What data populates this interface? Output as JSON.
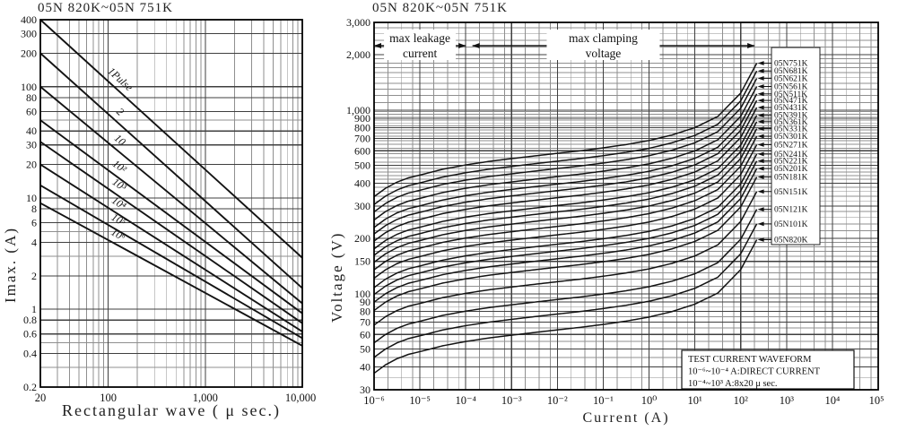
{
  "colors": {
    "background": "#ffffff",
    "curve": "#131313",
    "grid_minor": "#8f8f8f",
    "grid_major": "#3f3f3f",
    "border": "#000000"
  },
  "chart_data": [
    {
      "type": "line",
      "id": "pulse-derating",
      "title": "05N 820K~05N 751K",
      "xlabel": "Rectangular wave ( μ sec.)",
      "ylabel": "Imax. (A)",
      "xscale": "log",
      "yscale": "log",
      "xlim": [
        20,
        10000
      ],
      "ylim": [
        0.2,
        400
      ],
      "xticks": [
        {
          "v": 20,
          "label": "20"
        },
        {
          "v": 100,
          "label": "100"
        },
        {
          "v": 1000,
          "label": "1,000"
        },
        {
          "v": 10000,
          "label": "10,000"
        }
      ],
      "yticks": [
        {
          "v": 400,
          "label": "400"
        },
        {
          "v": 300,
          "label": "300"
        },
        {
          "v": 200,
          "label": "200"
        },
        {
          "v": 100,
          "label": "100"
        },
        {
          "v": 80,
          "label": "80"
        },
        {
          "v": 60,
          "label": "60"
        },
        {
          "v": 40,
          "label": "40"
        },
        {
          "v": 30,
          "label": "30"
        },
        {
          "v": 20,
          "label": "20"
        },
        {
          "v": 10,
          "label": "10"
        },
        {
          "v": 8,
          "label": "8"
        },
        {
          "v": 6,
          "label": "6"
        },
        {
          "v": 4,
          "label": "4"
        },
        {
          "v": 2,
          "label": "2"
        },
        {
          "v": 1,
          "label": "1"
        },
        {
          "v": 0.8,
          "label": "0.8"
        },
        {
          "v": 0.6,
          "label": "0.6"
        },
        {
          "v": 0.4,
          "label": "0.4"
        },
        {
          "v": 0.2,
          "label": "0.2"
        }
      ],
      "xgrid_major": [
        100,
        1000
      ],
      "xgrid_minor": [
        30,
        40,
        50,
        60,
        70,
        80,
        90,
        200,
        300,
        400,
        500,
        600,
        700,
        800,
        900,
        2000,
        3000,
        4000,
        5000,
        6000,
        7000,
        8000,
        9000
      ],
      "ygrid_major": [
        0.4,
        0.6,
        0.8,
        1,
        2,
        4,
        6,
        8,
        10,
        20,
        30,
        40,
        60,
        80,
        100,
        200,
        300
      ],
      "ygrid_minor": [
        0.3,
        0.5,
        3,
        5,
        50
      ],
      "series": [
        {
          "name": "1Pulse",
          "points": [
            [
              20,
              400
            ],
            [
              10000,
              2.9
            ]
          ],
          "label_frac": 0.28
        },
        {
          "name": "2",
          "points": [
            [
              20,
              200
            ],
            [
              10000,
              1.55
            ]
          ],
          "label_frac": 0.28
        },
        {
          "name": "10",
          "points": [
            [
              20,
              100
            ],
            [
              10000,
              1.13
            ]
          ],
          "label_frac": 0.28
        },
        {
          "name": "10²",
          "points": [
            [
              20,
              50
            ],
            [
              10000,
              0.92
            ]
          ],
          "label_frac": 0.28
        },
        {
          "name": "10³",
          "points": [
            [
              20,
              32
            ],
            [
              10000,
              0.75
            ]
          ],
          "label_frac": 0.28
        },
        {
          "name": "10⁴",
          "points": [
            [
              20,
              20
            ],
            [
              10000,
              0.63
            ]
          ],
          "label_frac": 0.28
        },
        {
          "name": "10⁵",
          "points": [
            [
              20,
              13
            ],
            [
              10000,
              0.55
            ]
          ],
          "label_frac": 0.28
        },
        {
          "name": "10⁶",
          "points": [
            [
              20,
              9
            ],
            [
              10000,
              0.47
            ]
          ],
          "label_frac": 0.28
        }
      ]
    },
    {
      "type": "line",
      "id": "vi-characteristic",
      "title": "05N 820K~05N 751K",
      "xlabel": "Current (A)",
      "ylabel": "Voltage (V)",
      "xscale": "log",
      "yscale": "log",
      "xlim": [
        1e-06,
        100000.0
      ],
      "ylim": [
        30,
        3000
      ],
      "xticks": [
        {
          "v": 1e-06,
          "label": "10⁻⁶"
        },
        {
          "v": 1e-05,
          "label": "10⁻⁵"
        },
        {
          "v": 0.0001,
          "label": "10⁻⁴"
        },
        {
          "v": 0.001,
          "label": "10⁻³"
        },
        {
          "v": 0.01,
          "label": "10⁻²"
        },
        {
          "v": 0.1,
          "label": "10⁻¹"
        },
        {
          "v": 1,
          "label": "10⁰"
        },
        {
          "v": 10,
          "label": "10¹"
        },
        {
          "v": 100,
          "label": "10²"
        },
        {
          "v": 1000,
          "label": "10³"
        },
        {
          "v": 10000,
          "label": "10⁴"
        },
        {
          "v": 100000,
          "label": "10⁵"
        }
      ],
      "yticks": [
        {
          "v": 3000,
          "label": "3,000"
        },
        {
          "v": 2000,
          "label": "2,000"
        },
        {
          "v": 1000,
          "label": "1,000"
        },
        {
          "v": 900,
          "label": "900"
        },
        {
          "v": 800,
          "label": "800"
        },
        {
          "v": 700,
          "label": "700"
        },
        {
          "v": 600,
          "label": "600"
        },
        {
          "v": 500,
          "label": "500"
        },
        {
          "v": 400,
          "label": "400"
        },
        {
          "v": 300,
          "label": "300"
        },
        {
          "v": 200,
          "label": "200"
        },
        {
          "v": 150,
          "label": "150"
        },
        {
          "v": 100,
          "label": "100"
        },
        {
          "v": 90,
          "label": "90"
        },
        {
          "v": 80,
          "label": "80"
        },
        {
          "v": 70,
          "label": "70"
        },
        {
          "v": 60,
          "label": "60"
        },
        {
          "v": 50,
          "label": "50"
        },
        {
          "v": 40,
          "label": "40"
        },
        {
          "v": 30,
          "label": "30"
        }
      ],
      "xgrid_major": [
        1e-05,
        0.0001,
        0.001,
        0.01,
        0.1,
        1,
        10,
        100,
        1000,
        10000
      ],
      "xgrid_minor_pattern": [
        2,
        4,
        7
      ],
      "ygrid_major": [
        40,
        50,
        60,
        70,
        80,
        90,
        100,
        150,
        200,
        300,
        400,
        500,
        600,
        700,
        800,
        900,
        1000,
        2000
      ],
      "ygrid_minor": [
        35,
        45,
        55,
        65,
        75,
        85,
        95,
        110,
        120,
        130,
        140,
        160,
        170,
        180,
        190,
        220,
        240,
        260,
        280,
        320,
        340,
        360,
        380,
        420,
        440,
        460,
        480,
        520,
        550,
        580,
        620,
        650,
        680,
        720,
        750,
        780,
        820,
        850,
        880,
        920,
        950,
        980,
        1100,
        1200,
        1300,
        1400,
        1500,
        1600,
        1700,
        1800,
        1900,
        2200,
        2400,
        2600,
        2800
      ],
      "parts": [
        {
          "name": "05N751K",
          "v": 750
        },
        {
          "name": "05N681K",
          "v": 680
        },
        {
          "name": "05N621K",
          "v": 620
        },
        {
          "name": "05N561K",
          "v": 560
        },
        {
          "name": "05N511K",
          "v": 510
        },
        {
          "name": "05N471K",
          "v": 470
        },
        {
          "name": "05N431K",
          "v": 430
        },
        {
          "name": "05N391K",
          "v": 390
        },
        {
          "name": "05N361K",
          "v": 360
        },
        {
          "name": "05N331K",
          "v": 330
        },
        {
          "name": "05N301K",
          "v": 300
        },
        {
          "name": "05N271K",
          "v": 270
        },
        {
          "name": "05N241K",
          "v": 240
        },
        {
          "name": "05N221K",
          "v": 220
        },
        {
          "name": "05N201K",
          "v": 200
        },
        {
          "name": "05N181K",
          "v": 180
        },
        {
          "name": "05N151K",
          "v": 150
        },
        {
          "name": "05N121K",
          "v": 120
        },
        {
          "name": "05N101K",
          "v": 100
        },
        {
          "name": "05N820K",
          "v": 82
        }
      ],
      "vi_profile": {
        "logI": [
          -6,
          -5.75,
          -5.5,
          -5.25,
          -5,
          -4.5,
          -4,
          -3.5,
          -3,
          -2.5,
          -2,
          -1.5,
          -1,
          -0.5,
          0,
          0.5,
          1,
          1.5,
          2,
          2.35
        ],
        "ratio": [
          0.45,
          0.5,
          0.54,
          0.57,
          0.59,
          0.635,
          0.67,
          0.7,
          0.725,
          0.75,
          0.775,
          0.8,
          0.83,
          0.865,
          0.91,
          0.975,
          1.07,
          1.23,
          1.65,
          2.4
        ]
      },
      "annotations": {
        "leakage_arrow": {
          "line1": "max leakage",
          "line2": "current",
          "x_from": 1e-06,
          "x_to": 0.0001
        },
        "clamping_arrow": {
          "line1": "max clamping",
          "line2": "voltage",
          "x_from": 0.00014,
          "x_to": 200
        },
        "test_box": {
          "lines": [
            "TEST CURRENT WAVEFORM",
            "10⁻⁶~10⁻⁴ A:DIRECT CURRENT",
            "10⁻⁴~10³ A:8x20 μ sec."
          ]
        }
      }
    }
  ]
}
